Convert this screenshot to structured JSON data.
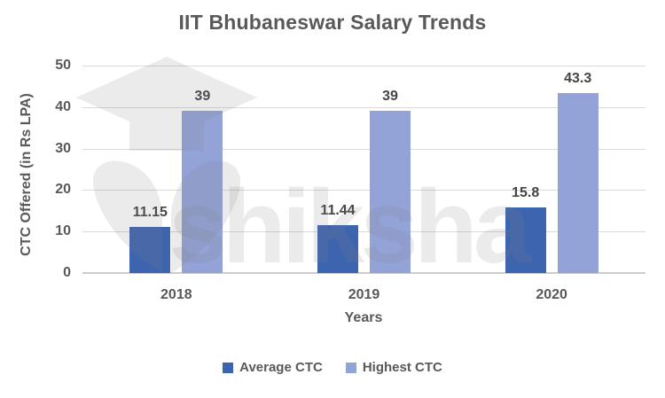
{
  "title": "IIT Bhubaneswar Salary Trends",
  "watermark": {
    "text": "shiksha",
    "logo": "shiksha-graduation-cap-logo"
  },
  "colors": {
    "average_ctc": "#3D64AF",
    "highest_ctc": "#93A3D8",
    "text": "#595959",
    "gridline": "#d9d9d9",
    "background": "#ffffff"
  },
  "chart_data": {
    "type": "bar",
    "title": "IIT Bhubaneswar Salary Trends",
    "categories": [
      "2018",
      "2019",
      "2020"
    ],
    "series": [
      {
        "name": "Average CTC",
        "color": "#3D64AF",
        "values": [
          11.15,
          11.44,
          15.8
        ]
      },
      {
        "name": "Highest CTC",
        "color": "#93A3D8",
        "values": [
          39,
          39,
          43.3
        ]
      }
    ],
    "xlabel": "Years",
    "ylabel": "CTC Offered (in Rs LPA)",
    "ylim": [
      0,
      50
    ],
    "yticks": [
      0,
      10,
      20,
      30,
      40,
      50
    ],
    "grid": "horizontal",
    "data_labels": true,
    "legend_position": "bottom"
  }
}
